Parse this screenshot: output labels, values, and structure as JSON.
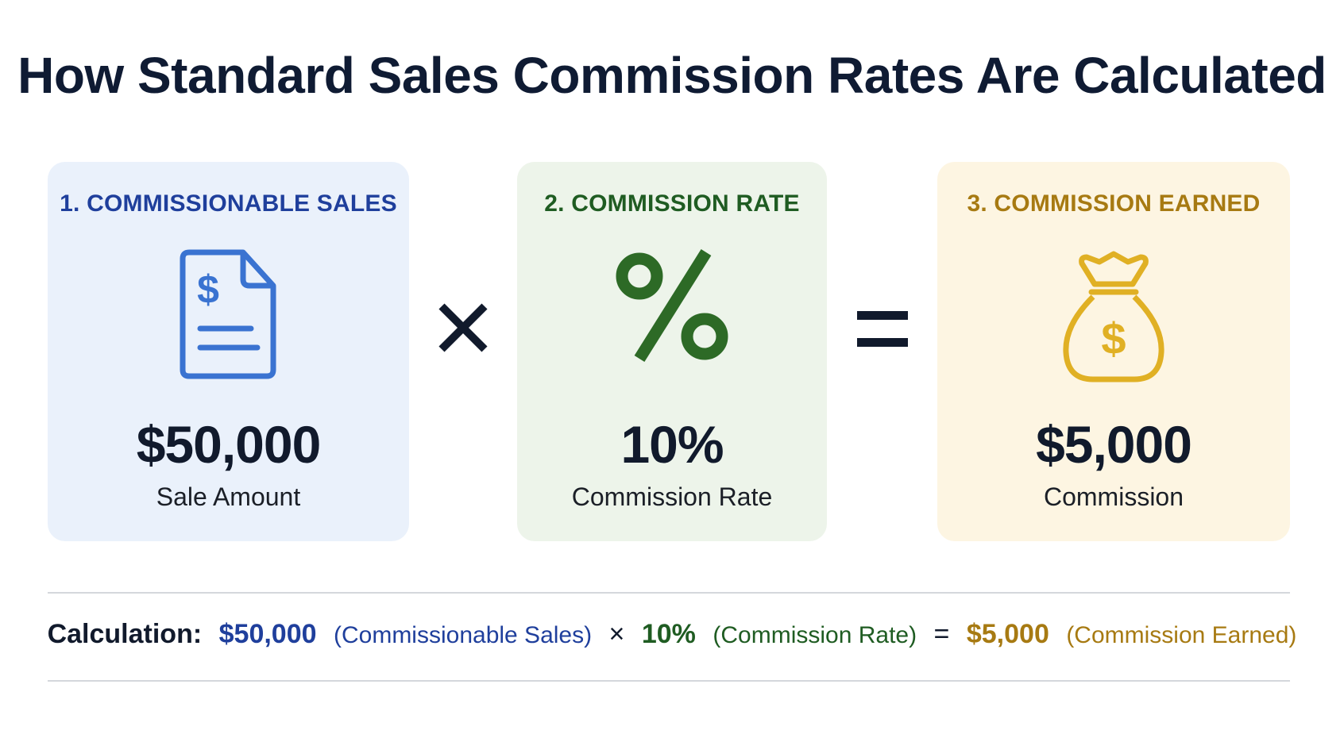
{
  "title": "How Standard Sales Commission Rates Are Calculated",
  "colors": {
    "blue": "#1f3f9c",
    "green": "#1f5c22",
    "gold": "#a77a12",
    "dark": "#111a2c"
  },
  "cards": [
    {
      "heading": "1. COMMISSIONABLE SALES",
      "icon": "document-dollar-icon",
      "value": "$50,000",
      "caption": "Sale Amount"
    },
    {
      "heading": "2. COMMISSION RATE",
      "icon": "percent-icon",
      "value": "10%",
      "caption": "Commission Rate"
    },
    {
      "heading": "3. COMMISSION EARNED",
      "icon": "money-bag-icon",
      "value": "$5,000",
      "caption": "Commission"
    }
  ],
  "operators": {
    "multiply": "×",
    "equals": "="
  },
  "calculation": {
    "label": "Calculation:",
    "sales_value": "$50,000",
    "sales_note": "(Commissionable Sales)",
    "times": "×",
    "rate_value": "10%",
    "rate_note": "(Commission Rate)",
    "equals": "=",
    "earned_value": "$5,000",
    "earned_note": "(Commission Earned)"
  }
}
